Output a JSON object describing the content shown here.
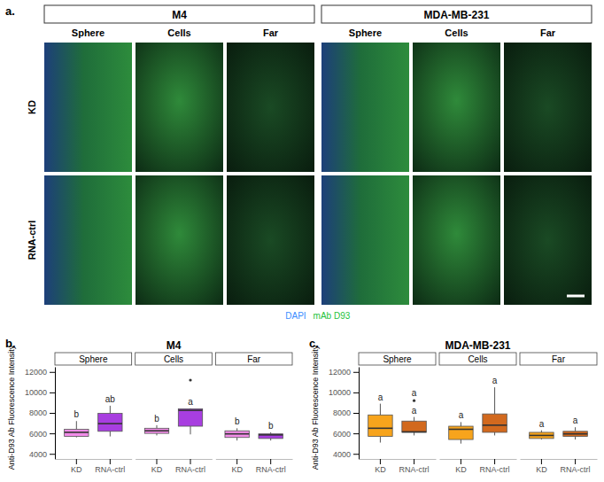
{
  "image_panel": {
    "label": "a.",
    "groups": [
      "M4",
      "MDA-MB-231"
    ],
    "columns": [
      "Sphere",
      "Cells",
      "Far"
    ],
    "rows": [
      "KD",
      "RNA-ctrl"
    ],
    "legend": [
      {
        "name": "DAPI",
        "color": "#3a8cff"
      },
      {
        "name": "mAb D93",
        "color": "#22c23a"
      }
    ]
  },
  "chart_data": [
    {
      "type": "box",
      "panel_label": "b.",
      "title": "M4",
      "y_label": "Anti-D93 Ab Fluorescence Intensity",
      "categories": [
        "KD",
        "RNA-ctrl"
      ],
      "colors": [
        "#f28ce8",
        "#a83ee0"
      ],
      "ylim": [
        3500,
        12500
      ],
      "yticks": [
        4000,
        6000,
        8000,
        10000,
        12000
      ],
      "grid": false,
      "facets": [
        {
          "name": "Sphere",
          "boxes": [
            {
              "min": 5600,
              "q1": 5700,
              "median": 6100,
              "q3": 6400,
              "max": 7200,
              "outliers": [],
              "letters": [
                "b"
              ]
            },
            {
              "min": 5700,
              "q1": 6200,
              "median": 6950,
              "q3": 7950,
              "max": 8700,
              "outliers": [],
              "letters": [
                "ab"
              ]
            }
          ]
        },
        {
          "name": "Cells",
          "boxes": [
            {
              "min": 5800,
              "q1": 6000,
              "median": 6250,
              "q3": 6500,
              "max": 6800,
              "outliers": [],
              "letters": [
                "b"
              ]
            },
            {
              "min": 5900,
              "q1": 6700,
              "median": 8250,
              "q3": 8400,
              "max": 8450,
              "outliers": [
                11200
              ],
              "letters": [
                "a"
              ]
            }
          ]
        },
        {
          "name": "Far",
          "boxes": [
            {
              "min": 5300,
              "q1": 5600,
              "median": 5950,
              "q3": 6250,
              "max": 6500,
              "outliers": [],
              "letters": [
                "b"
              ]
            },
            {
              "min": 5300,
              "q1": 5500,
              "median": 5850,
              "q3": 5950,
              "max": 6100,
              "outliers": [],
              "letters": [
                "b"
              ]
            }
          ]
        }
      ]
    },
    {
      "type": "box",
      "panel_label": "c.",
      "title": "MDA-MB-231",
      "y_label": "Anti-D93 Ab Fluorescence Intensity",
      "categories": [
        "KD",
        "RNA-ctrl"
      ],
      "colors": [
        "#f7a41c",
        "#d2691e"
      ],
      "ylim": [
        3500,
        12500
      ],
      "yticks": [
        4000,
        6000,
        8000,
        10000,
        12000
      ],
      "grid": false,
      "facets": [
        {
          "name": "Sphere",
          "boxes": [
            {
              "min": 5100,
              "q1": 5700,
              "median": 6500,
              "q3": 7800,
              "max": 8900,
              "outliers": [],
              "letters": [
                "a"
              ]
            },
            {
              "min": 5800,
              "q1": 6100,
              "median": 6150,
              "q3": 7200,
              "max": 7600,
              "outliers": [
                9200
              ],
              "letters": [
                "a",
                "a"
              ]
            }
          ]
        },
        {
          "name": "Cells",
          "boxes": [
            {
              "min": 5000,
              "q1": 5400,
              "median": 6400,
              "q3": 6700,
              "max": 7100,
              "outliers": [],
              "letters": [
                "a"
              ]
            },
            {
              "min": 5800,
              "q1": 6100,
              "median": 6800,
              "q3": 7900,
              "max": 10500,
              "outliers": [],
              "letters": [
                "a"
              ]
            }
          ]
        },
        {
          "name": "Far",
          "boxes": [
            {
              "min": 5400,
              "q1": 5500,
              "median": 5800,
              "q3": 6100,
              "max": 6300,
              "outliers": [],
              "letters": [
                "a"
              ]
            },
            {
              "min": 5400,
              "q1": 5700,
              "median": 5950,
              "q3": 6200,
              "max": 6600,
              "outliers": [],
              "letters": [
                "a"
              ]
            }
          ]
        }
      ]
    }
  ]
}
